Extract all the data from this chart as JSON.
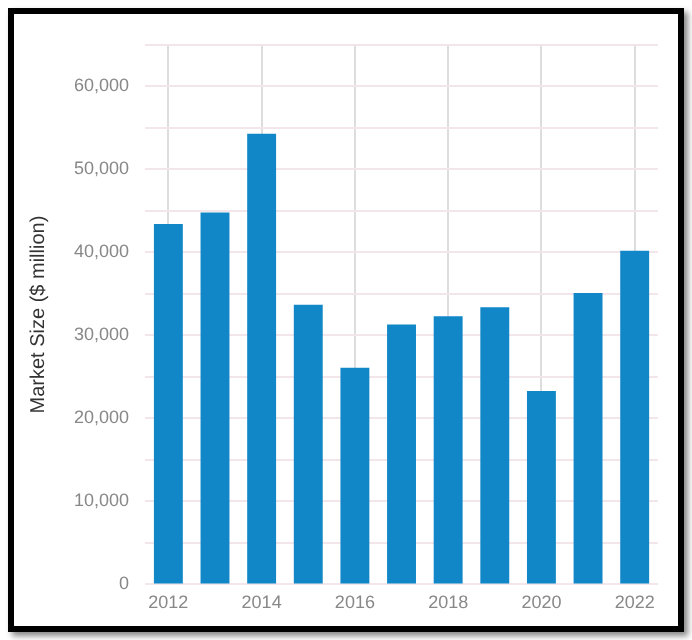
{
  "chart_data": {
    "type": "bar",
    "ylabel": "Market Size ($ million)",
    "categories": [
      "2012",
      null,
      "2014",
      null,
      "2016",
      null,
      "2018",
      null,
      "2020",
      null,
      "2022"
    ],
    "values": [
      43400,
      44800,
      54300,
      33700,
      26100,
      31300,
      32300,
      33400,
      23300,
      35100,
      40200
    ],
    "color": "#1187c8",
    "ylim": [
      0,
      65000
    ],
    "yticks": [
      {
        "value": 0,
        "label": "0"
      },
      {
        "value": 5000,
        "label": null
      },
      {
        "value": 10000,
        "label": "10,000"
      },
      {
        "value": 15000,
        "label": null
      },
      {
        "value": 20000,
        "label": "20,000"
      },
      {
        "value": 25000,
        "label": null
      },
      {
        "value": 30000,
        "label": "30,000"
      },
      {
        "value": 35000,
        "label": null
      },
      {
        "value": 40000,
        "label": "40,000"
      },
      {
        "value": 45000,
        "label": null
      },
      {
        "value": 50000,
        "label": "50,000"
      },
      {
        "value": 55000,
        "label": null
      },
      {
        "value": 60000,
        "label": "60,000"
      },
      {
        "value": 65000,
        "label": null
      }
    ],
    "grid": true
  }
}
